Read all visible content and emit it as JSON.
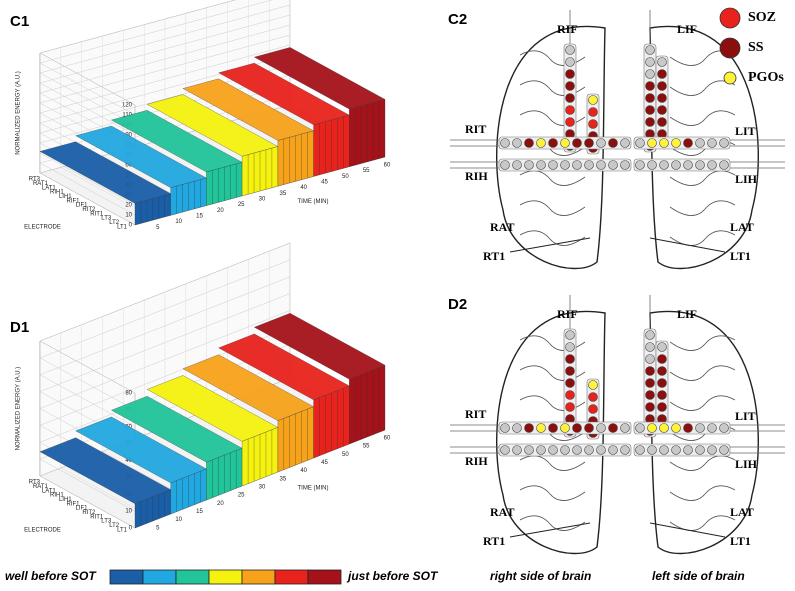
{
  "charts": [
    {
      "label": "C1",
      "y_axis": "NORMALIZED ENERGY (A.U.)",
      "x_axis": "TIME (MIN)",
      "z_axis": "ELECTRODE",
      "xlim": [
        0,
        60
      ],
      "xticks": [
        5,
        10,
        15,
        20,
        25,
        30,
        35,
        40,
        45,
        50,
        55,
        60
      ],
      "ylim": [
        0,
        120
      ],
      "yticks": [
        0,
        10,
        20,
        30,
        40,
        50,
        60,
        70,
        80,
        90,
        100,
        110,
        120
      ],
      "electrodes": [
        "LT1",
        "LT2",
        "LT3",
        "RIT1",
        "RIT2",
        "LIF1",
        "RIF1",
        "LIH1",
        "RIH1",
        "LAT1",
        "RAT1",
        "RT3"
      ]
    },
    {
      "label": "D1",
      "y_axis": "NORMALIZED ENERGY (A.U.)",
      "x_axis": "TIME (MIN)",
      "z_axis": "ELECTRODE",
      "xlim": [
        0,
        60
      ],
      "xticks": [
        5,
        10,
        15,
        20,
        25,
        30,
        35,
        40,
        45,
        50,
        55,
        60
      ],
      "ylim": [
        0,
        80
      ],
      "yticks": [
        0,
        10,
        20,
        30,
        40,
        50,
        60,
        70,
        80
      ],
      "electrodes": [
        "LT1",
        "LT2",
        "LT3",
        "RIT1",
        "RIT2",
        "LIF1",
        "RIF1",
        "LIH1",
        "RIH1",
        "LAT1",
        "RAT1",
        "RT3"
      ]
    }
  ],
  "brains": [
    {
      "label": "C2",
      "labels": [
        "RIF",
        "LIF",
        "RIT",
        "LIT",
        "RIH",
        "LIH",
        "RAT",
        "LAT",
        "RT1",
        "LT1"
      ]
    },
    {
      "label": "D2",
      "labels": [
        "RIF",
        "LIF",
        "RIT",
        "LIT",
        "RIH",
        "LIH",
        "RAT",
        "LAT",
        "RT1",
        "LT1"
      ]
    }
  ],
  "legend": [
    {
      "label": "SOZ",
      "color": "#e8221c"
    },
    {
      "label": "SS",
      "color": "#8b0f0f"
    },
    {
      "label": "PGOs",
      "color": "#fff23a"
    }
  ],
  "color_scale": {
    "start_label": "well before SOT",
    "end_label": "just before SOT",
    "colors": [
      "#1a5ea8",
      "#21a8e0",
      "#22c49a",
      "#f5f20f",
      "#f7a21b",
      "#e8221c",
      "#a5121a"
    ]
  },
  "captions": [
    "right side of brain",
    "left side of brain"
  ]
}
